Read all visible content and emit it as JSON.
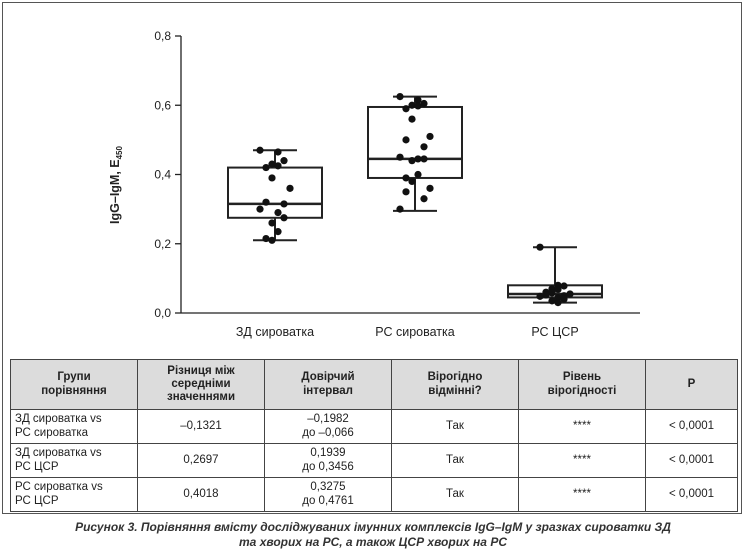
{
  "chart_data": {
    "type": "box",
    "ylabel": "IgG–IgM, E",
    "ylabel_sub": "450",
    "ylim": [
      0,
      0.8
    ],
    "yticks": [
      "0,0",
      "0,2",
      "0,4",
      "0,6",
      "0,8"
    ],
    "ytick_values": [
      0,
      0.2,
      0.4,
      0.6,
      0.8
    ],
    "categories": [
      "ЗД сироватка",
      "РС сироватка",
      "РС ЦСР"
    ],
    "boxes": [
      {
        "min": 0.21,
        "q1": 0.275,
        "median": 0.315,
        "q3": 0.42,
        "max": 0.47,
        "points": [
          0.47,
          0.465,
          0.44,
          0.43,
          0.425,
          0.42,
          0.39,
          0.36,
          0.32,
          0.315,
          0.3,
          0.29,
          0.275,
          0.26,
          0.235,
          0.215,
          0.21
        ]
      },
      {
        "min": 0.295,
        "q1": 0.39,
        "median": 0.445,
        "q3": 0.595,
        "max": 0.625,
        "points": [
          0.625,
          0.615,
          0.605,
          0.6,
          0.598,
          0.59,
          0.56,
          0.51,
          0.5,
          0.48,
          0.45,
          0.445,
          0.445,
          0.44,
          0.4,
          0.39,
          0.38,
          0.36,
          0.35,
          0.33,
          0.3
        ]
      },
      {
        "min": 0.03,
        "q1": 0.045,
        "median": 0.055,
        "q3": 0.08,
        "max": 0.19,
        "points": [
          0.19,
          0.08,
          0.078,
          0.07,
          0.068,
          0.06,
          0.058,
          0.055,
          0.052,
          0.05,
          0.048,
          0.045,
          0.04,
          0.035,
          0.03
        ]
      }
    ]
  },
  "table": {
    "headers": [
      "Групи\nпорівняння",
      "Різниця між\nсередніми\nзначеннями",
      "Довірчий\nінтервал",
      "Вірогідно\nвідмінні?",
      "Рівень\nвірогідності",
      "P"
    ],
    "rows": [
      [
        "ЗД  сироватка  vs\nРС сироватка",
        "–0,1321",
        "–0,1982\nдо –0,066",
        "Так",
        "****",
        "< 0,0001"
      ],
      [
        "ЗД  сироватка  vs\nРС ЦСР",
        "0,2697",
        "0,1939\nдо 0,3456",
        "Так",
        "****",
        "< 0,0001"
      ],
      [
        "РС  сироватка  vs\nРС ЦСР",
        "0,4018",
        "0,3275\nдо 0,4761",
        "Так",
        "****",
        "< 0,0001"
      ]
    ]
  },
  "caption": "Рисунок 3. Порівняння вмісту досліджуваних імунних комплексів IgG–IgM у зразках сироватки ЗД\nта хворих на РС, а також ЦСР хворих на РС"
}
